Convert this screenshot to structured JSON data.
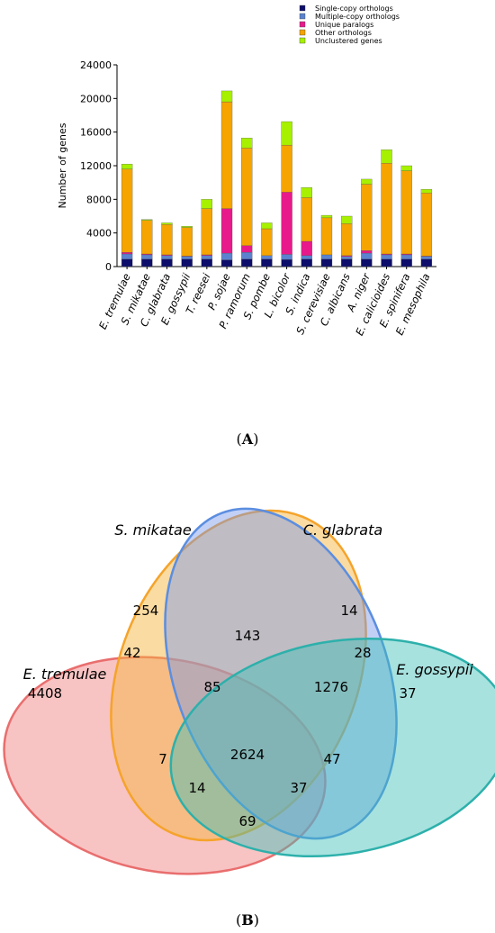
{
  "panel_a_label": "A",
  "panel_b_label": "B",
  "chart_data": [
    {
      "type": "bar",
      "stacked": true,
      "ylabel": "Number of genes",
      "ylim": [
        0,
        24000
      ],
      "yticks": [
        "0",
        "4000",
        "8000",
        "12000",
        "16000",
        "20000",
        "24000"
      ],
      "ytick_values": [
        0,
        4000,
        8000,
        12000,
        16000,
        20000,
        24000
      ],
      "legend_position": "top-right",
      "categories": [
        "E. tremulae",
        "S. mikatae",
        "C. glabrata",
        "E. gossypii",
        "T. reesei",
        "P. sojae",
        "P. ramorum",
        "S. pombe",
        "L. bicolor",
        "S. indica",
        "S. cerevisiae",
        "C. albicans",
        "A. niger",
        "E. calicioides",
        "E. spinifera",
        "E. mesophila"
      ],
      "series": [
        {
          "name": "Single-copy orthologs",
          "color": "#0d0d6b",
          "values": [
            900,
            900,
            900,
            900,
            900,
            800,
            900,
            900,
            850,
            900,
            900,
            900,
            900,
            900,
            900,
            900
          ]
        },
        {
          "name": "Multiple-copy orthologs",
          "color": "#5b82cf",
          "values": [
            600,
            500,
            400,
            300,
            400,
            800,
            800,
            400,
            600,
            400,
            500,
            300,
            700,
            500,
            500,
            300
          ]
        },
        {
          "name": "Unique paralogs",
          "color": "#e8198b",
          "values": [
            200,
            100,
            100,
            50,
            100,
            5300,
            800,
            0,
            7400,
            1700,
            0,
            100,
            300,
            100,
            100,
            50
          ]
        },
        {
          "name": "Other orthologs",
          "color": "#f5a400",
          "values": [
            9900,
            4000,
            3600,
            3400,
            5500,
            12700,
            11600,
            3200,
            5600,
            5200,
            4400,
            3800,
            7900,
            10800,
            9900,
            7500
          ]
        },
        {
          "name": "Unclustered genes",
          "color": "#a6f000",
          "values": [
            600,
            100,
            200,
            150,
            1100,
            1300,
            1200,
            700,
            2800,
            1200,
            300,
            900,
            600,
            1600,
            600,
            450
          ]
        }
      ]
    },
    {
      "type": "venn",
      "sets": [
        "S. mikatae",
        "C. glabrata",
        "E. tremulae",
        "E. gossypii"
      ],
      "regions": [
        {
          "name": "S. mikatae only",
          "value": "254"
        },
        {
          "name": "C. glabrata only",
          "value": "14"
        },
        {
          "name": "E. tremulae only",
          "value": "4408"
        },
        {
          "name": "E. gossypii only",
          "value": "37"
        },
        {
          "name": "S. mikatae & C. glabrata",
          "value": "143"
        },
        {
          "name": "S. mikatae & E. tremulae",
          "value": "42"
        },
        {
          "name": "C. glabrata & E. gossypii",
          "value": "28"
        },
        {
          "name": "S. mikatae & C. glabrata & E. tremulae",
          "value": "85"
        },
        {
          "name": "S. mikatae & C. glabrata & E. gossypii",
          "value": "1276"
        },
        {
          "name": "C. glabrata & E. tremulae",
          "value": "7"
        },
        {
          "name": "all four",
          "value": "2624"
        },
        {
          "name": "S. mikatae & E. gossypii",
          "value": "47"
        },
        {
          "name": "C. glabrata & E. tremulae & E. gossypii",
          "value": "14"
        },
        {
          "name": "S. mikatae & E. tremulae & E. gossypii",
          "value": "37"
        },
        {
          "name": "E. tremulae & E. gossypii",
          "value": "69"
        }
      ]
    }
  ]
}
